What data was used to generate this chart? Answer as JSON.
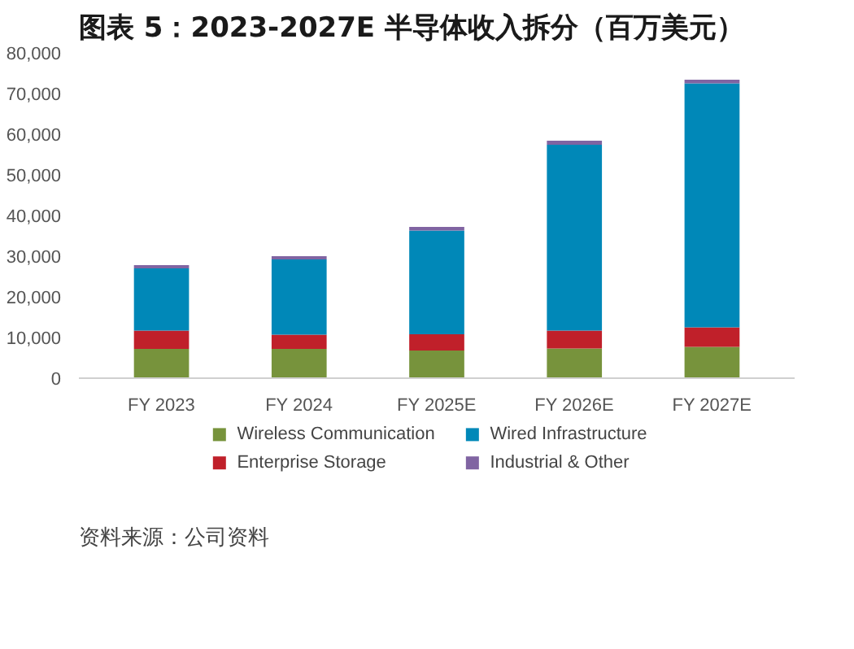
{
  "chart_data": {
    "type": "bar",
    "stacked": true,
    "title": "图表 5：2023-2027E 半导体收入拆分（百万美元）",
    "categories": [
      "FY 2023",
      "FY 2024",
      "FY 2025E",
      "FY 2026E",
      "FY 2027E"
    ],
    "series": [
      {
        "name": "Wireless Communication",
        "color": "#77933c",
        "values": [
          7200,
          7200,
          6800,
          7300,
          7700
        ]
      },
      {
        "name": "Enterprise Storage",
        "color": "#c0202a",
        "values": [
          4500,
          3500,
          4000,
          4400,
          4800
        ]
      },
      {
        "name": "Wired Infrastructure",
        "color": "#0088b8",
        "values": [
          15300,
          18500,
          25500,
          45700,
          60000
        ]
      },
      {
        "name": "Industrial & Other",
        "color": "#8064a2",
        "values": [
          800,
          800,
          900,
          1000,
          900
        ]
      }
    ],
    "ylim": [
      0,
      80000
    ],
    "yticks": [
      {
        "value": 0,
        "label": "0"
      },
      {
        "value": 10000,
        "label": "10,000"
      },
      {
        "value": 20000,
        "label": "20,000"
      },
      {
        "value": 30000,
        "label": "30,000"
      },
      {
        "value": 40000,
        "label": "40,000"
      },
      {
        "value": 50000,
        "label": "50,000"
      },
      {
        "value": 60000,
        "label": "60,000"
      },
      {
        "value": 70000,
        "label": "70,000"
      },
      {
        "value": 80000,
        "label": "80,000"
      }
    ],
    "grid": false,
    "legend": "bottom",
    "annotations": [
      "资料来源：公司资料"
    ]
  }
}
